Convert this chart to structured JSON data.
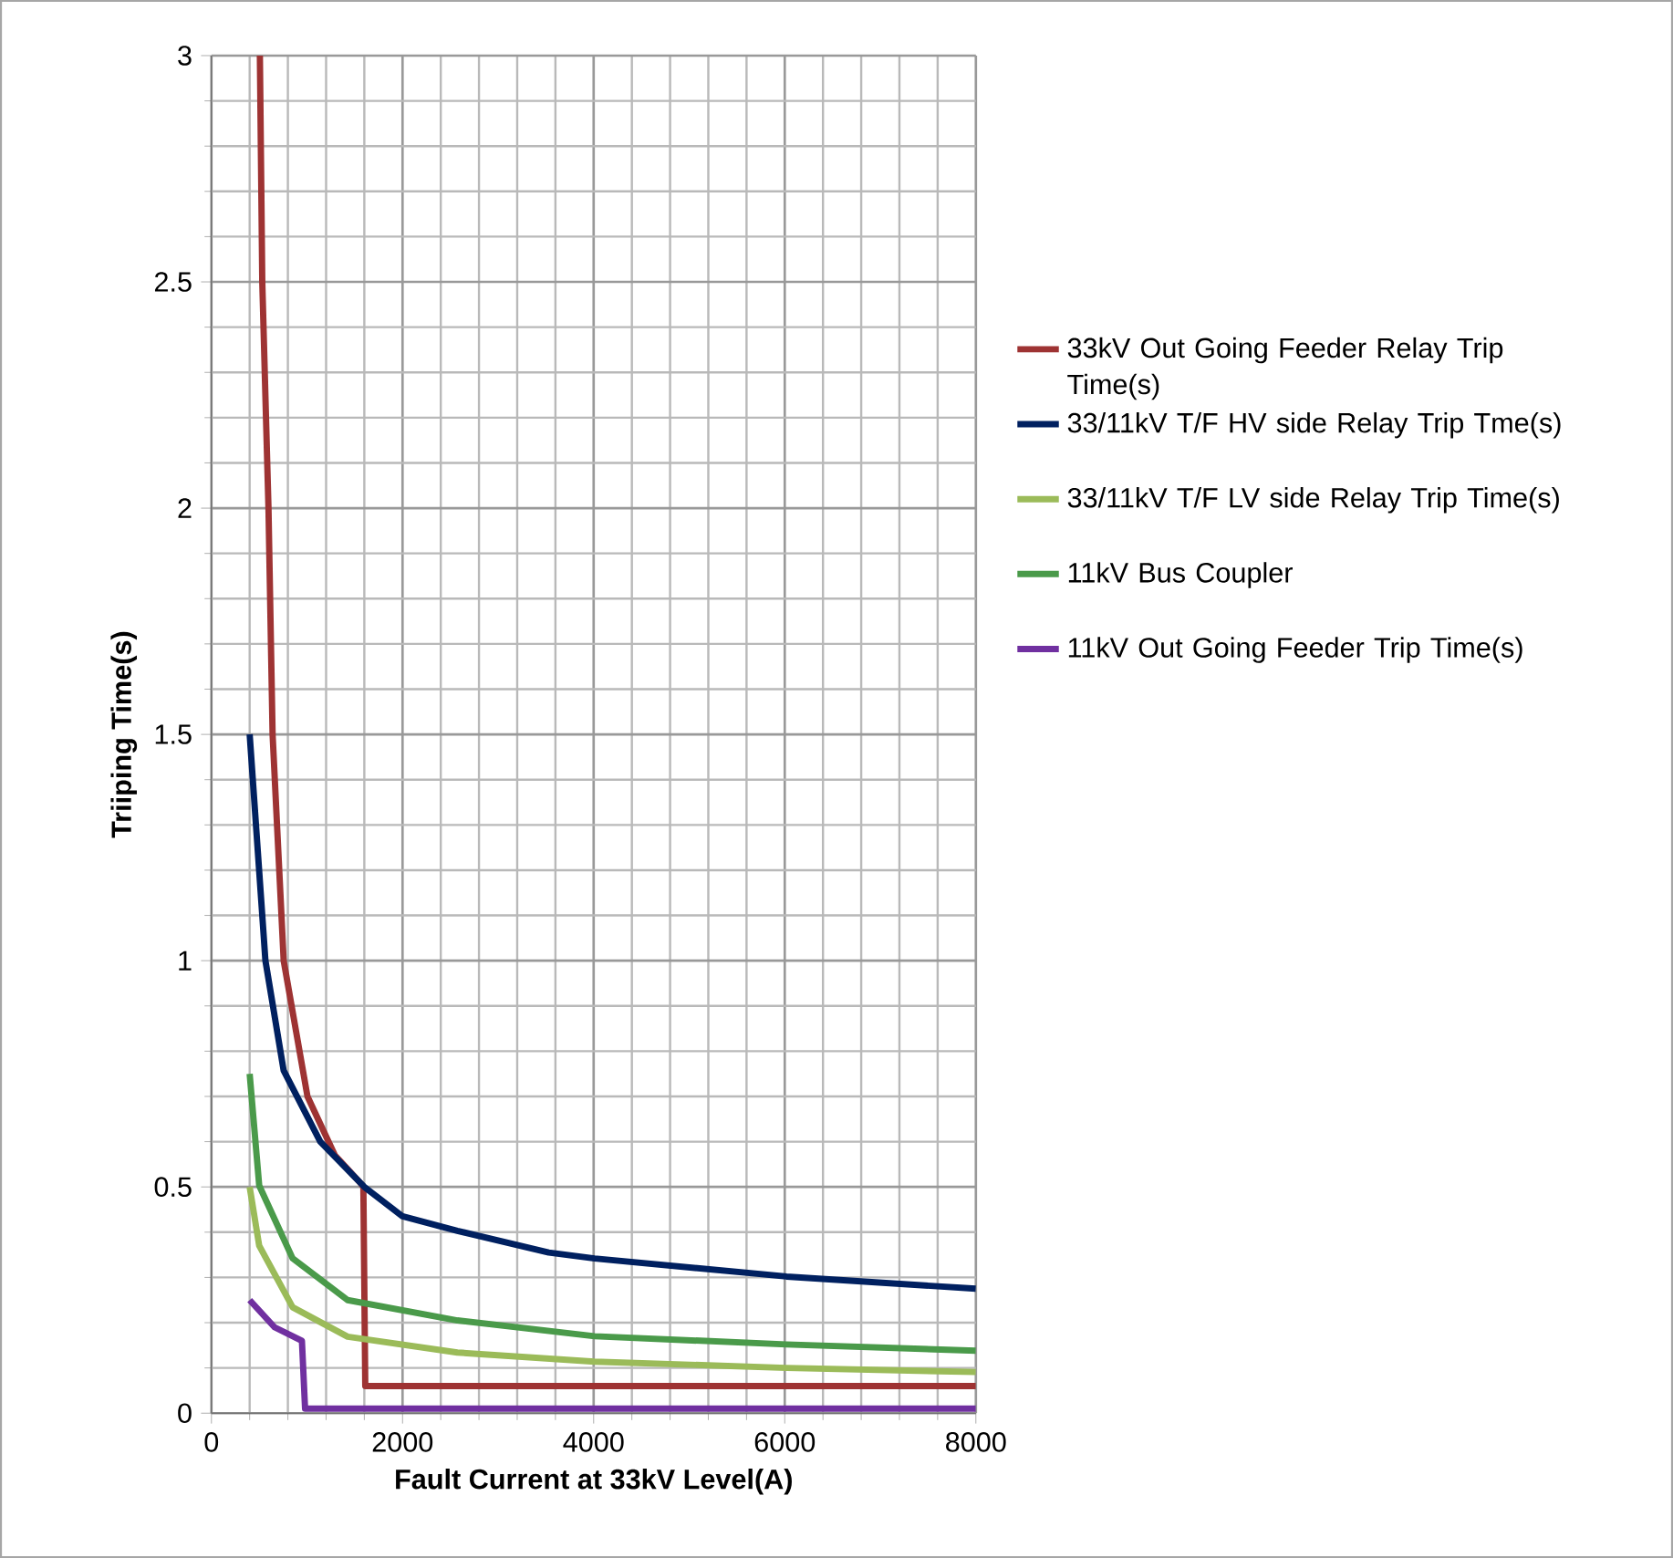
{
  "chart_data": {
    "type": "line",
    "xlabel": "Fault Current at 33kV Level(A)",
    "ylabel": "Triiping Time(s)",
    "xlim": [
      0,
      8000
    ],
    "ylim": [
      0,
      3
    ],
    "xticks": [
      0,
      2000,
      4000,
      6000,
      8000
    ],
    "yticks": [
      0,
      {
        "value": 0.5,
        "label": "0.5"
      },
      1,
      {
        "value": 1.5,
        "label": "1.5"
      },
      2,
      {
        "value": 2.5,
        "label": "2.5"
      },
      3
    ],
    "grid": true,
    "legend": "right",
    "marker": "none",
    "line_style": "solid",
    "series": [
      {
        "name": "33kV Out Going Feeder Relay Trip Time(s)",
        "color": "#9e3333",
        "x": [
          507,
          532,
          597,
          640,
          756,
          1005,
          1292,
          1554,
          1590,
          1610,
          8000
        ],
        "values": [
          3,
          2.5,
          2,
          1.5,
          1,
          0.7,
          0.57,
          0.51,
          0.5,
          0.06,
          0.06
        ]
      },
      {
        "name": "33/11kV T/F HV side Relay Trip Tme(s)",
        "color": "#002060",
        "x": [
          400,
          565,
          756,
          1139,
          1600,
          2000,
          2574,
          3530,
          4010,
          6019,
          8000
        ],
        "values": [
          1.5,
          1.0,
          0.757,
          0.6,
          0.5,
          0.435,
          0.403,
          0.355,
          0.342,
          0.302,
          0.275
        ]
      },
      {
        "name": "33/11kV T/F LV side Relay Trip Time(s)",
        "color": "#9bbb59",
        "x": [
          400,
          500,
          850,
          1425,
          2574,
          4010,
          6019,
          8000
        ],
        "values": [
          0.5,
          0.37,
          0.234,
          0.169,
          0.134,
          0.114,
          0.1,
          0.091
        ]
      },
      {
        "name": "11kV Bus Coupler",
        "color": "#4a9a4a",
        "x": [
          400,
          500,
          850,
          1425,
          2574,
          4010,
          6019,
          8000
        ],
        "values": [
          0.75,
          0.503,
          0.342,
          0.25,
          0.205,
          0.17,
          0.152,
          0.138
        ]
      },
      {
        "name": "11kV Out Going Feeder Trip Time(s)",
        "color": "#7030a0",
        "x": [
          400,
          660,
          947,
          980,
          8000
        ],
        "values": [
          0.25,
          0.19,
          0.16,
          0.01,
          0.01
        ]
      }
    ]
  }
}
